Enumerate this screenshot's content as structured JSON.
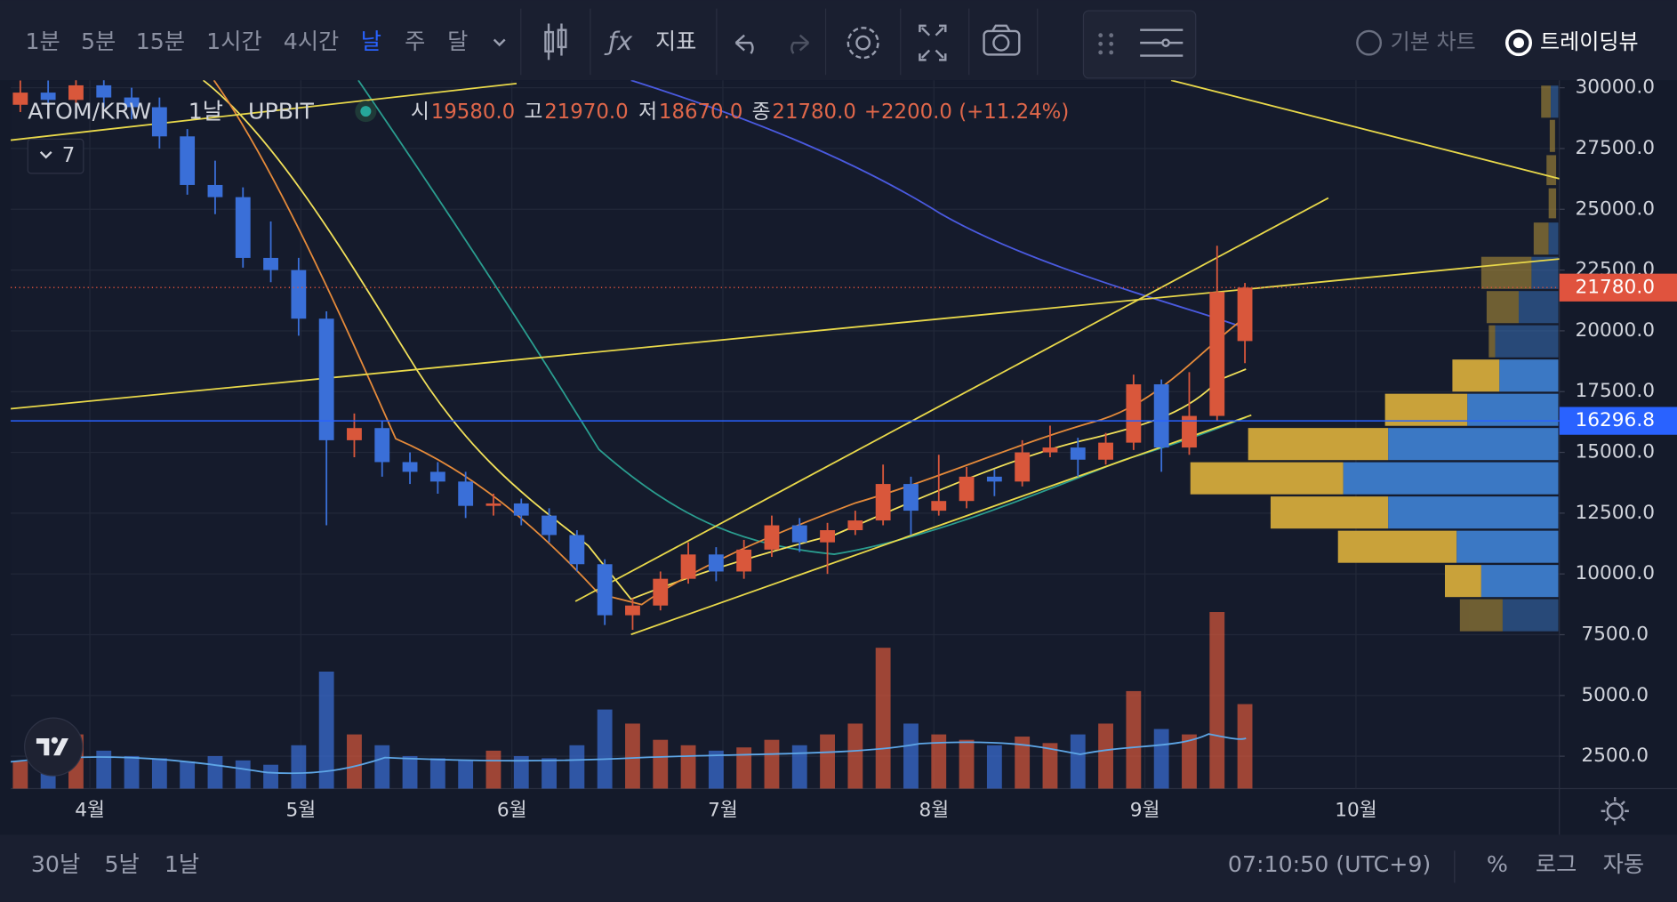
{
  "toolbar": {
    "intervals": [
      "1분",
      "5분",
      "15분",
      "1시간",
      "4시간",
      "날",
      "주",
      "달"
    ],
    "active_interval": 5,
    "indicators": "지표",
    "chart_modes": [
      "기본 차트",
      "트레이딩뷰"
    ],
    "active_mode": 1
  },
  "chart_data": {
    "type": "candlestick",
    "symbol": "ATOM/KRW",
    "interval": "1날",
    "exchange": "UPBIT",
    "ohlc_legend": {
      "items": [
        {
          "label": "시",
          "value": "19580.0"
        },
        {
          "label": "고",
          "value": "21970.0"
        },
        {
          "label": "저",
          "value": "18670.0"
        },
        {
          "label": "종",
          "value": "21780.0"
        }
      ],
      "change": "+2200.0 (+11.24%)"
    },
    "indicator_count": "7",
    "open": [
      29300,
      29800,
      29500,
      30100,
      29600,
      29200,
      28000,
      26000,
      25500,
      23000,
      22500,
      20500,
      15500,
      16000,
      14600,
      14200,
      13800,
      12800,
      12900,
      12400,
      11600,
      10400,
      8300,
      8700,
      9800,
      10800,
      10100,
      11000,
      12000,
      11300,
      11800,
      12200,
      13700,
      12600,
      13000,
      14000,
      13800,
      15000,
      15200,
      14700,
      15400,
      17800,
      15200,
      16500,
      19580
    ],
    "high": [
      30300,
      30300,
      30400,
      30400,
      30000,
      29600,
      28300,
      27000,
      25900,
      24500,
      23000,
      20800,
      16600,
      16300,
      15000,
      14600,
      14200,
      13300,
      13100,
      12700,
      11800,
      10600,
      9000,
      10100,
      11300,
      11100,
      11400,
      12400,
      12300,
      12100,
      12600,
      14500,
      14000,
      14900,
      14400,
      14300,
      15500,
      16100,
      15600,
      15800,
      18200,
      18000,
      18300,
      23500,
      21970
    ],
    "low": [
      29000,
      29100,
      29300,
      29200,
      28700,
      27500,
      25600,
      24800,
      22600,
      22000,
      19800,
      12000,
      14800,
      14000,
      13700,
      13300,
      12300,
      12400,
      12000,
      11300,
      10100,
      7900,
      7700,
      8500,
      9600,
      9700,
      9800,
      10700,
      10900,
      10000,
      11600,
      12000,
      11600,
      12400,
      12700,
      13200,
      13600,
      14800,
      14000,
      14500,
      15100,
      14200,
      14900,
      16300,
      18670
    ],
    "close": [
      29800,
      29500,
      30100,
      29600,
      29200,
      28000,
      26000,
      25500,
      23000,
      22500,
      20500,
      15500,
      16000,
      14600,
      14200,
      13800,
      12800,
      12900,
      12400,
      11600,
      10400,
      8300,
      8700,
      9800,
      10800,
      10100,
      11000,
      12000,
      11300,
      11800,
      12200,
      13700,
      12600,
      13000,
      14000,
      13800,
      15000,
      15200,
      14700,
      15400,
      17800,
      15200,
      16500,
      21600,
      21780
    ],
    "volume": [
      25,
      40,
      50,
      35,
      30,
      28,
      25,
      30,
      26,
      22,
      40,
      108,
      50,
      40,
      30,
      28,
      26,
      35,
      30,
      28,
      40,
      73,
      60,
      45,
      40,
      35,
      38,
      45,
      40,
      50,
      60,
      130,
      60,
      50,
      45,
      40,
      48,
      42,
      50,
      60,
      90,
      55,
      50,
      163,
      78
    ],
    "up_color": "#d9573b",
    "down_color": "#3a6fd8",
    "ylim": [
      1170,
      30308
    ],
    "yticks": [
      {
        "value": 2500,
        "label": "2500.0"
      },
      {
        "value": 5000,
        "label": "5000.0"
      },
      {
        "value": 7500,
        "label": "7500.0"
      },
      {
        "value": 10000,
        "label": "10000.0"
      },
      {
        "value": 12500,
        "label": "12500.0"
      },
      {
        "value": 15000,
        "label": "15000.0"
      },
      {
        "value": 17500,
        "label": "17500.0"
      },
      {
        "value": 20000,
        "label": "20000.0"
      },
      {
        "value": 22500,
        "label": "22500.0"
      },
      {
        "value": 25000,
        "label": "25000.0"
      },
      {
        "value": 27500,
        "label": "27500.0"
      },
      {
        "value": 30000,
        "label": "30000.0"
      }
    ],
    "x_labels": [
      "4월",
      "5월",
      "6월",
      "7월",
      "8월",
      "9월",
      "10월"
    ],
    "price_lines": [
      {
        "value": 21780,
        "label": "21780.0",
        "color": "#e0533e"
      },
      {
        "value": 16296.8,
        "label": "16296.8",
        "color": "#2962ff"
      }
    ],
    "grid": true
  },
  "bottom_bar": {
    "ranges": [
      "30날",
      "5날",
      "1날"
    ],
    "clock": "07:10:50 (UTC+9)",
    "options": [
      "%",
      "로그",
      "자동"
    ]
  }
}
